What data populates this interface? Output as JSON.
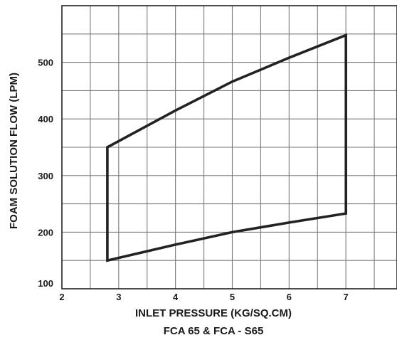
{
  "chart_data": {
    "type": "line",
    "title": "FCA 65 & FCA - S65",
    "xlabel": "INLET PRESSURE (KG/SQ.CM)",
    "ylabel": "FOAM SOLUTION FLOW (LPM)",
    "xlim": [
      2,
      7.9
    ],
    "ylim": [
      100,
      600
    ],
    "x_ticks": [
      2,
      3,
      4,
      5,
      6,
      7
    ],
    "y_ticks": [
      100,
      200,
      300,
      400,
      500
    ],
    "grid": true,
    "grid_x_step": 0.5,
    "grid_y_step": 50,
    "series": [
      {
        "type": "closed-outline",
        "color": "#222222",
        "points": [
          {
            "x": 2.8,
            "y": 150
          },
          {
            "x": 4.0,
            "y": 178
          },
          {
            "x": 5.0,
            "y": 200
          },
          {
            "x": 6.0,
            "y": 217
          },
          {
            "x": 7.0,
            "y": 233
          },
          {
            "x": 7.0,
            "y": 548
          },
          {
            "x": 6.0,
            "y": 508
          },
          {
            "x": 5.0,
            "y": 466
          },
          {
            "x": 4.0,
            "y": 415
          },
          {
            "x": 2.8,
            "y": 350
          }
        ]
      }
    ]
  }
}
